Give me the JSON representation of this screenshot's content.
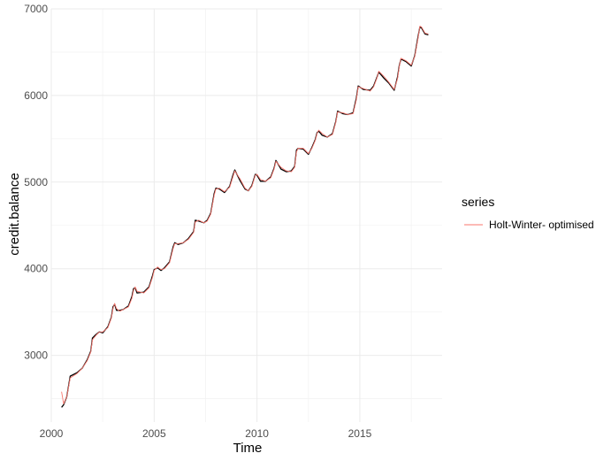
{
  "chart_data": {
    "type": "line",
    "title": "",
    "xlabel": "Time",
    "ylabel": "credit.balance",
    "xlim": [
      2000,
      2019
    ],
    "ylim": [
      2230,
      7000
    ],
    "x_ticks": [
      2000,
      2005,
      2010,
      2015
    ],
    "x_tick_labels": [
      "2000",
      "2005",
      "2010",
      "2015"
    ],
    "y_ticks": [
      3000,
      4000,
      5000,
      6000,
      7000
    ],
    "y_tick_labels": [
      "3000",
      "4000",
      "5000",
      "6000",
      "7000"
    ],
    "grid": true,
    "legend": {
      "title": "series",
      "placement": "right",
      "entries": [
        "Holt-Winter- optimised"
      ]
    },
    "colors": {
      "actual": "#000000",
      "fitted": "#f8766d",
      "grid": "#ebebeb"
    },
    "series": [
      {
        "style": "solid",
        "color": "#000000",
        "points": [
          [
            2000.5,
            2400
          ],
          [
            2000.6,
            2430
          ],
          [
            2000.75,
            2520
          ],
          [
            2000.92,
            2760
          ],
          [
            2001.25,
            2800
          ],
          [
            2001.5,
            2850
          ],
          [
            2001.75,
            2950
          ],
          [
            2001.92,
            3050
          ],
          [
            2002.0,
            3200
          ],
          [
            2002.17,
            3240
          ],
          [
            2002.33,
            3270
          ],
          [
            2002.5,
            3260
          ],
          [
            2002.75,
            3330
          ],
          [
            2002.92,
            3440
          ],
          [
            2003.0,
            3560
          ],
          [
            2003.08,
            3590
          ],
          [
            2003.17,
            3520
          ],
          [
            2003.33,
            3520
          ],
          [
            2003.5,
            3530
          ],
          [
            2003.75,
            3570
          ],
          [
            2003.92,
            3680
          ],
          [
            2004.0,
            3770
          ],
          [
            2004.08,
            3780
          ],
          [
            2004.17,
            3720
          ],
          [
            2004.5,
            3730
          ],
          [
            2004.75,
            3790
          ],
          [
            2004.92,
            3920
          ],
          [
            2005.0,
            3990
          ],
          [
            2005.17,
            4010
          ],
          [
            2005.33,
            3980
          ],
          [
            2005.5,
            4010
          ],
          [
            2005.75,
            4080
          ],
          [
            2005.92,
            4250
          ],
          [
            2006.0,
            4300
          ],
          [
            2006.17,
            4280
          ],
          [
            2006.42,
            4300
          ],
          [
            2006.67,
            4350
          ],
          [
            2006.92,
            4430
          ],
          [
            2007.0,
            4560
          ],
          [
            2007.17,
            4550
          ],
          [
            2007.42,
            4530
          ],
          [
            2007.58,
            4560
          ],
          [
            2007.75,
            4640
          ],
          [
            2007.92,
            4870
          ],
          [
            2008.0,
            4930
          ],
          [
            2008.17,
            4920
          ],
          [
            2008.42,
            4880
          ],
          [
            2008.67,
            4950
          ],
          [
            2008.83,
            5080
          ],
          [
            2008.92,
            5140
          ],
          [
            2009.17,
            5020
          ],
          [
            2009.42,
            4920
          ],
          [
            2009.58,
            4900
          ],
          [
            2009.75,
            4960
          ],
          [
            2009.92,
            5090
          ],
          [
            2010.0,
            5080
          ],
          [
            2010.17,
            5010
          ],
          [
            2010.42,
            5010
          ],
          [
            2010.67,
            5060
          ],
          [
            2010.83,
            5160
          ],
          [
            2010.92,
            5250
          ],
          [
            2011.17,
            5150
          ],
          [
            2011.42,
            5120
          ],
          [
            2011.67,
            5130
          ],
          [
            2011.83,
            5180
          ],
          [
            2011.92,
            5370
          ],
          [
            2012.0,
            5390
          ],
          [
            2012.25,
            5380
          ],
          [
            2012.5,
            5320
          ],
          [
            2012.67,
            5400
          ],
          [
            2012.83,
            5490
          ],
          [
            2012.92,
            5570
          ],
          [
            2013.0,
            5590
          ],
          [
            2013.17,
            5540
          ],
          [
            2013.42,
            5520
          ],
          [
            2013.67,
            5560
          ],
          [
            2013.83,
            5700
          ],
          [
            2013.92,
            5820
          ],
          [
            2014.17,
            5790
          ],
          [
            2014.42,
            5780
          ],
          [
            2014.67,
            5800
          ],
          [
            2014.83,
            5970
          ],
          [
            2014.92,
            6110
          ],
          [
            2015.17,
            6070
          ],
          [
            2015.5,
            6060
          ],
          [
            2015.67,
            6110
          ],
          [
            2015.83,
            6210
          ],
          [
            2015.92,
            6270
          ],
          [
            2016.17,
            6200
          ],
          [
            2016.42,
            6140
          ],
          [
            2016.67,
            6060
          ],
          [
            2016.83,
            6210
          ],
          [
            2016.92,
            6350
          ],
          [
            2017.0,
            6420
          ],
          [
            2017.25,
            6390
          ],
          [
            2017.5,
            6340
          ],
          [
            2017.67,
            6460
          ],
          [
            2017.83,
            6680
          ],
          [
            2017.92,
            6790
          ],
          [
            2018.0,
            6780
          ],
          [
            2018.17,
            6710
          ],
          [
            2018.33,
            6700
          ]
        ]
      },
      {
        "name": "Holt-Winter- optimised",
        "style": "solid",
        "color": "#f8766d",
        "points": [
          [
            2000.5,
            2580
          ],
          [
            2000.6,
            2440
          ],
          [
            2000.75,
            2520
          ],
          [
            2000.92,
            2740
          ],
          [
            2001.25,
            2790
          ],
          [
            2001.5,
            2850
          ],
          [
            2001.75,
            2940
          ],
          [
            2001.92,
            3040
          ],
          [
            2002.0,
            3180
          ],
          [
            2002.17,
            3230
          ],
          [
            2002.33,
            3270
          ],
          [
            2002.5,
            3270
          ],
          [
            2002.75,
            3320
          ],
          [
            2002.92,
            3430
          ],
          [
            2003.0,
            3540
          ],
          [
            2003.08,
            3600
          ],
          [
            2003.17,
            3540
          ],
          [
            2003.33,
            3510
          ],
          [
            2003.5,
            3530
          ],
          [
            2003.75,
            3560
          ],
          [
            2003.92,
            3660
          ],
          [
            2004.0,
            3750
          ],
          [
            2004.08,
            3790
          ],
          [
            2004.17,
            3740
          ],
          [
            2004.5,
            3720
          ],
          [
            2004.75,
            3780
          ],
          [
            2004.92,
            3900
          ],
          [
            2005.0,
            3980
          ],
          [
            2005.17,
            4020
          ],
          [
            2005.33,
            3990
          ],
          [
            2005.5,
            4000
          ],
          [
            2005.75,
            4070
          ],
          [
            2005.92,
            4230
          ],
          [
            2006.0,
            4290
          ],
          [
            2006.17,
            4290
          ],
          [
            2006.42,
            4300
          ],
          [
            2006.67,
            4340
          ],
          [
            2006.92,
            4420
          ],
          [
            2007.0,
            4540
          ],
          [
            2007.17,
            4560
          ],
          [
            2007.42,
            4530
          ],
          [
            2007.58,
            4550
          ],
          [
            2007.75,
            4630
          ],
          [
            2007.92,
            4850
          ],
          [
            2008.0,
            4920
          ],
          [
            2008.17,
            4930
          ],
          [
            2008.42,
            4890
          ],
          [
            2008.67,
            4940
          ],
          [
            2008.83,
            5060
          ],
          [
            2008.92,
            5130
          ],
          [
            2009.17,
            5040
          ],
          [
            2009.42,
            4930
          ],
          [
            2009.58,
            4900
          ],
          [
            2009.75,
            4950
          ],
          [
            2009.92,
            5080
          ],
          [
            2010.0,
            5090
          ],
          [
            2010.17,
            5030
          ],
          [
            2010.42,
            5010
          ],
          [
            2010.67,
            5050
          ],
          [
            2010.83,
            5150
          ],
          [
            2010.92,
            5240
          ],
          [
            2011.17,
            5170
          ],
          [
            2011.42,
            5130
          ],
          [
            2011.67,
            5120
          ],
          [
            2011.83,
            5170
          ],
          [
            2011.92,
            5350
          ],
          [
            2012.0,
            5390
          ],
          [
            2012.25,
            5390
          ],
          [
            2012.5,
            5330
          ],
          [
            2012.67,
            5390
          ],
          [
            2012.83,
            5480
          ],
          [
            2012.92,
            5560
          ],
          [
            2013.0,
            5600
          ],
          [
            2013.17,
            5560
          ],
          [
            2013.42,
            5520
          ],
          [
            2013.67,
            5550
          ],
          [
            2013.83,
            5690
          ],
          [
            2013.92,
            5810
          ],
          [
            2014.17,
            5800
          ],
          [
            2014.42,
            5780
          ],
          [
            2014.67,
            5790
          ],
          [
            2014.83,
            5950
          ],
          [
            2014.92,
            6100
          ],
          [
            2015.17,
            6080
          ],
          [
            2015.5,
            6050
          ],
          [
            2015.67,
            6100
          ],
          [
            2015.83,
            6200
          ],
          [
            2015.92,
            6280
          ],
          [
            2016.17,
            6220
          ],
          [
            2016.42,
            6150
          ],
          [
            2016.67,
            6070
          ],
          [
            2016.83,
            6190
          ],
          [
            2016.92,
            6340
          ],
          [
            2017.0,
            6430
          ],
          [
            2017.25,
            6400
          ],
          [
            2017.5,
            6350
          ],
          [
            2017.67,
            6450
          ],
          [
            2017.83,
            6660
          ],
          [
            2017.92,
            6800
          ],
          [
            2018.0,
            6790
          ],
          [
            2018.17,
            6720
          ],
          [
            2018.33,
            6710
          ]
        ]
      }
    ]
  }
}
